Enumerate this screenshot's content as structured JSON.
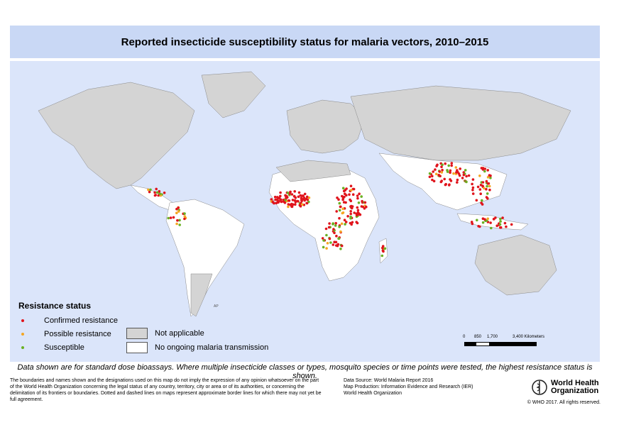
{
  "title": "Reported insecticide susceptibility status for malaria vectors, 2010–2015",
  "map_labels": {
    "antarctica": "AP"
  },
  "legend": {
    "title": "Resistance status",
    "items": [
      {
        "label": "Confirmed resistance",
        "color": "#e0141c"
      },
      {
        "label": "Possible resistance",
        "color": "#f5a623"
      },
      {
        "label": "Susceptible",
        "color": "#6ab023"
      }
    ],
    "areas": [
      {
        "label": "Not applicable",
        "color": "#d4d4d4"
      },
      {
        "label": "No ongoing malaria transmission",
        "color": "#ffffff"
      }
    ]
  },
  "scale_bar": {
    "ticks": [
      "0",
      "850",
      "1,700",
      "3,400 Kilometers"
    ]
  },
  "note": "Data shown are for standard dose bioassays. Where multiple insecticide classes or types, mosquito species or time points were tested, the highest resistance status is shown.",
  "disclaimer": "The boundaries and names shown and the designations used on this map do not imply the expression of any opinion whatsoever on the part of the World Health Organization concerning the legal status of any country, territory, city or area or of its authorities, or concerning the delimitation of its frontiers or boundaries. Dotted and dashed lines on maps represent approximate border lines for which there may not yet be full agreement.",
  "source": {
    "line1": "Data Source: World Malaria Report 2016",
    "line2": "Map Production: Information Evidence and Research (IER)",
    "line3": "World Health Organization"
  },
  "who": {
    "line1": "World Health",
    "line2": "Organization"
  },
  "copyright": "© WHO 2017. All rights reserved.",
  "colors": {
    "ocean": "#dbe5fa",
    "title_bar": "#c9d8f5",
    "endemic_land": "#ffffff",
    "non_endemic_land": "#d4d4d4"
  }
}
